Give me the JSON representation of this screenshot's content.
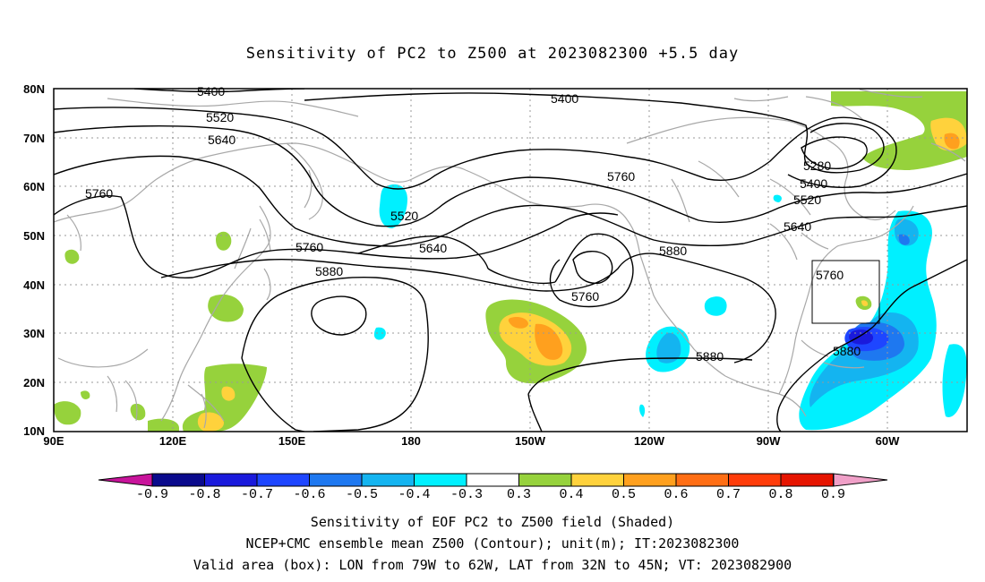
{
  "title": "Sensitivity of PC2 to Z500 at 2023082300 +5.5 day",
  "map": {
    "lat_labels": [
      "80N",
      "70N",
      "60N",
      "50N",
      "40N",
      "30N",
      "20N",
      "10N"
    ],
    "lon_labels": [
      "90E",
      "120E",
      "150E",
      "180",
      "150W",
      "120W",
      "90W",
      "60W"
    ]
  },
  "contours": [
    {
      "value": "5400",
      "label": "5400"
    },
    {
      "value": "5400",
      "label": "5400"
    },
    {
      "value": "5520",
      "label": "5520"
    },
    {
      "value": "5640",
      "label": "5640"
    },
    {
      "value": "5760",
      "label": "5760"
    },
    {
      "value": "5520",
      "label": "5520"
    },
    {
      "value": "5640",
      "label": "5640"
    },
    {
      "value": "5760",
      "label": "5760"
    },
    {
      "value": "5880",
      "label": "5880"
    },
    {
      "value": "5760",
      "label": "5760"
    },
    {
      "value": "5760",
      "label": "5760"
    },
    {
      "value": "5880",
      "label": "5880"
    },
    {
      "value": "5280",
      "label": "5280"
    },
    {
      "value": "5400",
      "label": "5400"
    },
    {
      "value": "5520",
      "label": "5520"
    },
    {
      "value": "5640",
      "label": "5640"
    },
    {
      "value": "5760",
      "label": "5760"
    },
    {
      "value": "5880",
      "label": "5880"
    },
    {
      "value": "5880",
      "label": "5880"
    }
  ],
  "colorbar": {
    "labels": [
      "-0.9",
      "-0.8",
      "-0.7",
      "-0.6",
      "-0.5",
      "-0.4",
      "-0.3",
      "0.3",
      "0.4",
      "0.5",
      "0.6",
      "0.7",
      "0.8",
      "0.9"
    ],
    "colors": [
      "#0a0a8c",
      "#1a1adc",
      "#1e46ff",
      "#1e78f0",
      "#14b4f0",
      "#00f0ff",
      "#ffffff",
      "#96d23c",
      "#ffd23c",
      "#ffa01e",
      "#ff6e14",
      "#ff3c0a",
      "#e61400"
    ],
    "under_color": "#c8149b",
    "over_color": "#f0a0c8"
  },
  "captions": [
    "Sensitivity of EOF PC2 to Z500 field (Shaded)",
    "NCEP+CMC ensemble mean Z500 (Contour); unit(m); IT:2023082300",
    "Valid area (box): LON from 79W to 62W, LAT from 32N to 45N; VT: 2023082900"
  ]
}
